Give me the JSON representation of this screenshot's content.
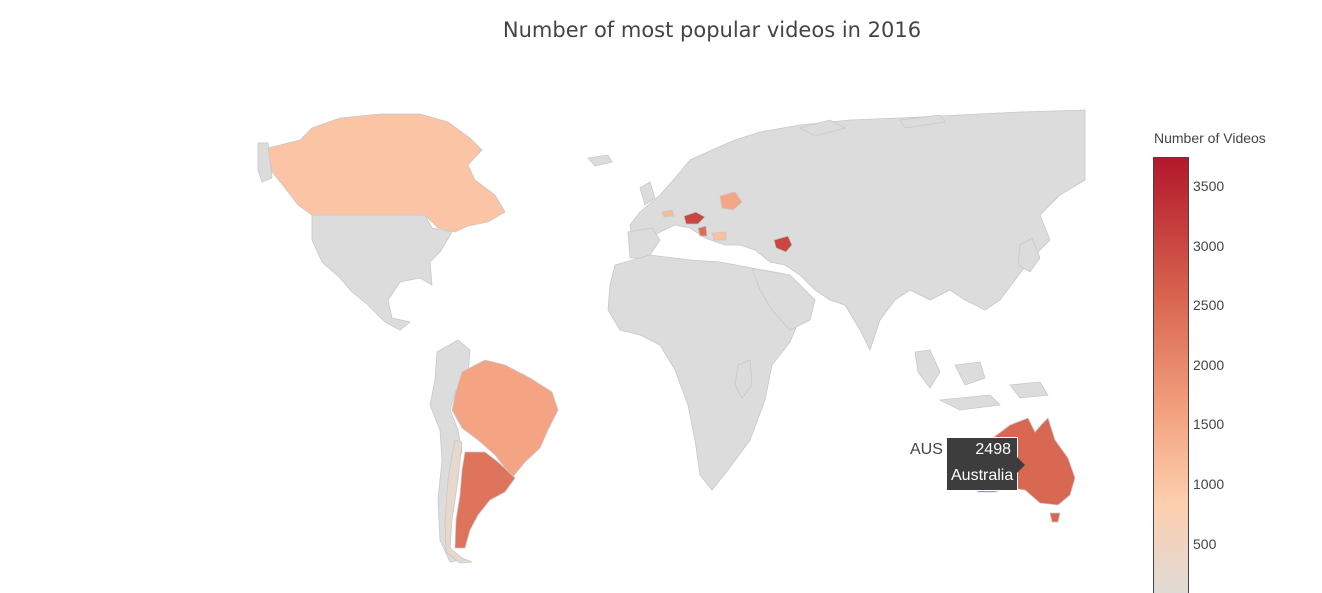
{
  "chart_data": {
    "type": "choropleth",
    "title": "Number of most popular videos in 2016",
    "colorbar": {
      "title": "Number of Videos",
      "ticks": [
        "3500",
        "3000",
        "2500",
        "2000",
        "1500",
        "1000",
        "500"
      ],
      "range": [
        100,
        3700
      ]
    },
    "countries": [
      {
        "code": "CAN",
        "name": "Canada",
        "value": 1000
      },
      {
        "code": "BRA",
        "name": "Brazil",
        "value": 1550
      },
      {
        "code": "ARG",
        "name": "Argentina",
        "value": 2300
      },
      {
        "code": "CHL",
        "name": "Chile",
        "value": 250
      },
      {
        "code": "AUS",
        "name": "Australia",
        "value": 2498
      },
      {
        "code": "AZE",
        "name": "Azerbaijan",
        "value": 3000
      },
      {
        "code": "HUN",
        "name": "Hungary",
        "value": 3000
      },
      {
        "code": "BLR",
        "name": "Belarus",
        "value": 1500
      },
      {
        "code": "CHE",
        "name": "Switzerland",
        "value": 1200
      },
      {
        "code": "BGR",
        "name": "Bulgaria",
        "value": 1100
      },
      {
        "code": "SRB",
        "name": "Serbia",
        "value": 2400
      }
    ],
    "hover": {
      "code": "AUS",
      "value": "2498",
      "name": "Australia"
    }
  }
}
